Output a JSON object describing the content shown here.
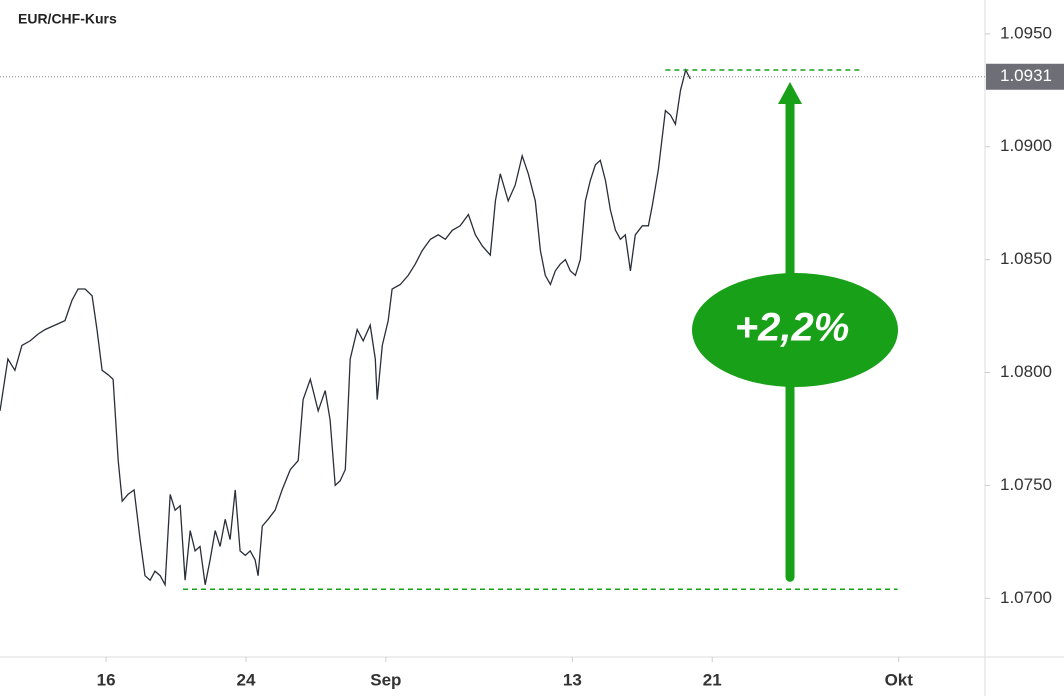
{
  "chart_data": {
    "type": "line",
    "title": "EUR/CHF-Kurs",
    "color": "#2a2e39",
    "x": [
      -4.55,
      -4.21,
      -3.91,
      -3.61,
      -3.26,
      -2.92,
      -2.62,
      -2.19,
      -1.76,
      -1.46,
      -1.2,
      -0.9,
      -0.6,
      -0.39,
      -0.17,
      0.09,
      0.3,
      0.52,
      0.69,
      0.94,
      1.2,
      1.46,
      1.67,
      1.89,
      2.1,
      2.32,
      2.53,
      2.75,
      2.96,
      3.18,
      3.39,
      3.61,
      3.82,
      4.03,
      4.25,
      4.46,
      4.68,
      4.89,
      5.11,
      5.32,
      5.54,
      5.75,
      5.97,
      6.18,
      6.39,
      6.52,
      6.7,
      6.95,
      7.25,
      7.55,
      7.9,
      8.24,
      8.45,
      8.76,
      9.1,
      9.4,
      9.61,
      9.83,
      10.04,
      10.26,
      10.47,
      10.77,
      11.03,
      11.33,
      11.55,
      11.63,
      11.85,
      12.1,
      12.27,
      12.62,
      12.96,
      13.26,
      13.56,
      13.91,
      14.25,
      14.55,
      14.85,
      15.19,
      15.54,
      15.84,
      16.14,
      16.48,
      16.7,
      16.91,
      17.25,
      17.55,
      17.85,
      18.11,
      18.41,
      18.63,
      18.84,
      19.06,
      19.27,
      19.48,
      19.7,
      19.91,
      20.13,
      20.34,
      20.56,
      20.77,
      20.99,
      21.2,
      21.42,
      21.63,
      21.85,
      22.06,
      22.27,
      22.49,
      22.7,
      23.0,
      23.26,
      23.43,
      23.69,
      23.99,
      24.21,
      24.42,
      24.64,
      24.86,
      25.06
    ],
    "values": [
      1.0783,
      1.0806,
      1.0801,
      1.0812,
      1.0814,
      1.0817,
      1.0819,
      1.0821,
      1.0823,
      1.0832,
      1.0837,
      1.0837,
      1.0834,
      1.0819,
      1.0801,
      1.0799,
      1.0797,
      1.0761,
      1.0743,
      1.0746,
      1.0748,
      1.0726,
      1.071,
      1.0708,
      1.0712,
      1.071,
      1.0706,
      1.0746,
      1.0739,
      1.0741,
      1.0708,
      1.073,
      1.0721,
      1.0723,
      1.0706,
      1.0717,
      1.073,
      1.0723,
      1.0735,
      1.0726,
      1.0748,
      1.0721,
      1.0719,
      1.0721,
      1.0717,
      1.071,
      1.0732,
      1.0735,
      1.0739,
      1.0748,
      1.0757,
      1.0761,
      1.0788,
      1.0797,
      1.0783,
      1.0792,
      1.0779,
      1.075,
      1.0752,
      1.0757,
      1.0806,
      1.0819,
      1.0814,
      1.0821,
      1.0806,
      1.0788,
      1.0812,
      1.0823,
      1.0837,
      1.0839,
      1.0843,
      1.0848,
      1.0854,
      1.0859,
      1.0861,
      1.0859,
      1.0863,
      1.0865,
      1.087,
      1.0861,
      1.0856,
      1.0852,
      1.0876,
      1.0888,
      1.0876,
      1.0883,
      1.0896,
      1.0888,
      1.0876,
      1.0854,
      1.0843,
      1.0839,
      1.0845,
      1.0848,
      1.085,
      1.0845,
      1.0843,
      1.085,
      1.0876,
      1.0885,
      1.0892,
      1.0894,
      1.0885,
      1.0872,
      1.0863,
      1.0859,
      1.0861,
      1.0845,
      1.0861,
      1.0865,
      1.0865,
      1.0874,
      1.089,
      1.0916,
      1.0914,
      1.091,
      1.0925,
      1.0934,
      1.093
    ],
    "xlim": [
      -4.55,
      37.7
    ],
    "xticks": [
      {
        "value": 0,
        "label": "16"
      },
      {
        "value": 6,
        "label": "24"
      },
      {
        "value": 12,
        "label": "Sep"
      },
      {
        "value": 20,
        "label": "13"
      },
      {
        "value": 26,
        "label": "21"
      },
      {
        "value": 34,
        "label": "Okt"
      }
    ],
    "ylim": [
      1.0674,
      1.0965
    ],
    "yticks": [
      {
        "value": 1.07,
        "label": "1.0700"
      },
      {
        "value": 1.075,
        "label": "1.0750"
      },
      {
        "value": 1.08,
        "label": "1.0800"
      },
      {
        "value": 1.085,
        "label": "1.0850"
      },
      {
        "value": 1.09,
        "label": "1.0900"
      },
      {
        "value": 1.095,
        "label": "1.0950"
      }
    ],
    "last_price": 1.0931,
    "reference_lines": [
      {
        "value": 1.0934,
        "x": [
          23.99,
          32.36
        ]
      },
      {
        "value": 1.0704,
        "x": [
          3.3,
          33.95
        ]
      }
    ],
    "annotation": "+2,2%",
    "annotation_color": "#18a018"
  }
}
